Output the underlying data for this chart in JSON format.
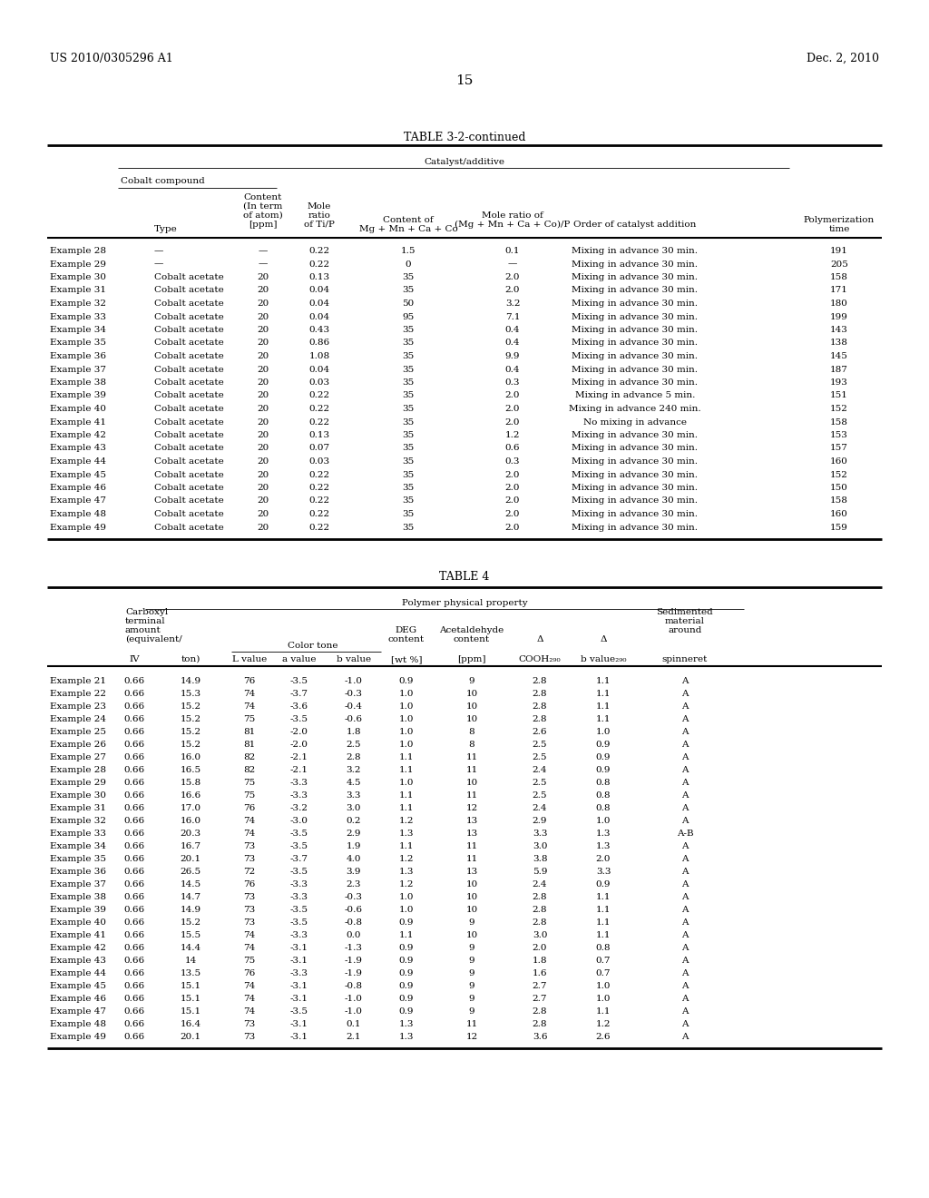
{
  "header_left": "US 2010/0305296 A1",
  "header_right": "Dec. 2, 2010",
  "page_num": "15",
  "table1_title": "TABLE 3-2-continued",
  "table1_span_header": "Catalyst/additive",
  "table1_cobalt_header": "Cobalt compound",
  "table1_rows": [
    [
      "Example 28",
      "—",
      "—",
      "0.22",
      "1.5",
      "0.1",
      "Mixing in advance 30 min.",
      "191"
    ],
    [
      "Example 29",
      "—",
      "—",
      "0.22",
      "0",
      "—",
      "Mixing in advance 30 min.",
      "205"
    ],
    [
      "Example 30",
      "Cobalt acetate",
      "20",
      "0.13",
      "35",
      "2.0",
      "Mixing in advance 30 min.",
      "158"
    ],
    [
      "Example 31",
      "Cobalt acetate",
      "20",
      "0.04",
      "35",
      "2.0",
      "Mixing in advance 30 min.",
      "171"
    ],
    [
      "Example 32",
      "Cobalt acetate",
      "20",
      "0.04",
      "50",
      "3.2",
      "Mixing in advance 30 min.",
      "180"
    ],
    [
      "Example 33",
      "Cobalt acetate",
      "20",
      "0.04",
      "95",
      "7.1",
      "Mixing in advance 30 min.",
      "199"
    ],
    [
      "Example 34",
      "Cobalt acetate",
      "20",
      "0.43",
      "35",
      "0.4",
      "Mixing in advance 30 min.",
      "143"
    ],
    [
      "Example 35",
      "Cobalt acetate",
      "20",
      "0.86",
      "35",
      "0.4",
      "Mixing in advance 30 min.",
      "138"
    ],
    [
      "Example 36",
      "Cobalt acetate",
      "20",
      "1.08",
      "35",
      "9.9",
      "Mixing in advance 30 min.",
      "145"
    ],
    [
      "Example 37",
      "Cobalt acetate",
      "20",
      "0.04",
      "35",
      "0.4",
      "Mixing in advance 30 min.",
      "187"
    ],
    [
      "Example 38",
      "Cobalt acetate",
      "20",
      "0.03",
      "35",
      "0.3",
      "Mixing in advance 30 min.",
      "193"
    ],
    [
      "Example 39",
      "Cobalt acetate",
      "20",
      "0.22",
      "35",
      "2.0",
      "Mixing in advance 5 min.",
      "151"
    ],
    [
      "Example 40",
      "Cobalt acetate",
      "20",
      "0.22",
      "35",
      "2.0",
      "Mixing in advance 240 min.",
      "152"
    ],
    [
      "Example 41",
      "Cobalt acetate",
      "20",
      "0.22",
      "35",
      "2.0",
      "No mixing in advance",
      "158"
    ],
    [
      "Example 42",
      "Cobalt acetate",
      "20",
      "0.13",
      "35",
      "1.2",
      "Mixing in advance 30 min.",
      "153"
    ],
    [
      "Example 43",
      "Cobalt acetate",
      "20",
      "0.07",
      "35",
      "0.6",
      "Mixing in advance 30 min.",
      "157"
    ],
    [
      "Example 44",
      "Cobalt acetate",
      "20",
      "0.03",
      "35",
      "0.3",
      "Mixing in advance 30 min.",
      "160"
    ],
    [
      "Example 45",
      "Cobalt acetate",
      "20",
      "0.22",
      "35",
      "2.0",
      "Mixing in advance 30 min.",
      "152"
    ],
    [
      "Example 46",
      "Cobalt acetate",
      "20",
      "0.22",
      "35",
      "2.0",
      "Mixing in advance 30 min.",
      "150"
    ],
    [
      "Example 47",
      "Cobalt acetate",
      "20",
      "0.22",
      "35",
      "2.0",
      "Mixing in advance 30 min.",
      "158"
    ],
    [
      "Example 48",
      "Cobalt acetate",
      "20",
      "0.22",
      "35",
      "2.0",
      "Mixing in advance 30 min.",
      "160"
    ],
    [
      "Example 49",
      "Cobalt acetate",
      "20",
      "0.22",
      "35",
      "2.0",
      "Mixing in advance 30 min.",
      "159"
    ]
  ],
  "table2_title": "TABLE 4",
  "table2_span_header": "Polymer physical property",
  "table2_rows": [
    [
      "Example 21",
      "0.66",
      "14.9",
      "76",
      "-3.5",
      "-1.0",
      "0.9",
      "9",
      "2.8",
      "1.1",
      "A"
    ],
    [
      "Example 22",
      "0.66",
      "15.3",
      "74",
      "-3.7",
      "-0.3",
      "1.0",
      "10",
      "2.8",
      "1.1",
      "A"
    ],
    [
      "Example 23",
      "0.66",
      "15.2",
      "74",
      "-3.6",
      "-0.4",
      "1.0",
      "10",
      "2.8",
      "1.1",
      "A"
    ],
    [
      "Example 24",
      "0.66",
      "15.2",
      "75",
      "-3.5",
      "-0.6",
      "1.0",
      "10",
      "2.8",
      "1.1",
      "A"
    ],
    [
      "Example 25",
      "0.66",
      "15.2",
      "81",
      "-2.0",
      "1.8",
      "1.0",
      "8",
      "2.6",
      "1.0",
      "A"
    ],
    [
      "Example 26",
      "0.66",
      "15.2",
      "81",
      "-2.0",
      "2.5",
      "1.0",
      "8",
      "2.5",
      "0.9",
      "A"
    ],
    [
      "Example 27",
      "0.66",
      "16.0",
      "82",
      "-2.1",
      "2.8",
      "1.1",
      "11",
      "2.5",
      "0.9",
      "A"
    ],
    [
      "Example 28",
      "0.66",
      "16.5",
      "82",
      "-2.1",
      "3.2",
      "1.1",
      "11",
      "2.4",
      "0.9",
      "A"
    ],
    [
      "Example 29",
      "0.66",
      "15.8",
      "75",
      "-3.3",
      "4.5",
      "1.0",
      "10",
      "2.5",
      "0.8",
      "A"
    ],
    [
      "Example 30",
      "0.66",
      "16.6",
      "75",
      "-3.3",
      "3.3",
      "1.1",
      "11",
      "2.5",
      "0.8",
      "A"
    ],
    [
      "Example 31",
      "0.66",
      "17.0",
      "76",
      "-3.2",
      "3.0",
      "1.1",
      "12",
      "2.4",
      "0.8",
      "A"
    ],
    [
      "Example 32",
      "0.66",
      "16.0",
      "74",
      "-3.0",
      "0.2",
      "1.2",
      "13",
      "2.9",
      "1.0",
      "A"
    ],
    [
      "Example 33",
      "0.66",
      "20.3",
      "74",
      "-3.5",
      "2.9",
      "1.3",
      "13",
      "3.3",
      "1.3",
      "A-B"
    ],
    [
      "Example 34",
      "0.66",
      "16.7",
      "73",
      "-3.5",
      "1.9",
      "1.1",
      "11",
      "3.0",
      "1.3",
      "A"
    ],
    [
      "Example 35",
      "0.66",
      "20.1",
      "73",
      "-3.7",
      "4.0",
      "1.2",
      "11",
      "3.8",
      "2.0",
      "A"
    ],
    [
      "Example 36",
      "0.66",
      "26.5",
      "72",
      "-3.5",
      "3.9",
      "1.3",
      "13",
      "5.9",
      "3.3",
      "A"
    ],
    [
      "Example 37",
      "0.66",
      "14.5",
      "76",
      "-3.3",
      "2.3",
      "1.2",
      "10",
      "2.4",
      "0.9",
      "A"
    ],
    [
      "Example 38",
      "0.66",
      "14.7",
      "73",
      "-3.3",
      "-0.3",
      "1.0",
      "10",
      "2.8",
      "1.1",
      "A"
    ],
    [
      "Example 39",
      "0.66",
      "14.9",
      "73",
      "-3.5",
      "-0.6",
      "1.0",
      "10",
      "2.8",
      "1.1",
      "A"
    ],
    [
      "Example 40",
      "0.66",
      "15.2",
      "73",
      "-3.5",
      "-0.8",
      "0.9",
      "9",
      "2.8",
      "1.1",
      "A"
    ],
    [
      "Example 41",
      "0.66",
      "15.5",
      "74",
      "-3.3",
      "0.0",
      "1.1",
      "10",
      "3.0",
      "1.1",
      "A"
    ],
    [
      "Example 42",
      "0.66",
      "14.4",
      "74",
      "-3.1",
      "-1.3",
      "0.9",
      "9",
      "2.0",
      "0.8",
      "A"
    ],
    [
      "Example 43",
      "0.66",
      "14",
      "75",
      "-3.1",
      "-1.9",
      "0.9",
      "9",
      "1.8",
      "0.7",
      "A"
    ],
    [
      "Example 44",
      "0.66",
      "13.5",
      "76",
      "-3.3",
      "-1.9",
      "0.9",
      "9",
      "1.6",
      "0.7",
      "A"
    ],
    [
      "Example 45",
      "0.66",
      "15.1",
      "74",
      "-3.1",
      "-0.8",
      "0.9",
      "9",
      "2.7",
      "1.0",
      "A"
    ],
    [
      "Example 46",
      "0.66",
      "15.1",
      "74",
      "-3.1",
      "-1.0",
      "0.9",
      "9",
      "2.7",
      "1.0",
      "A"
    ],
    [
      "Example 47",
      "0.66",
      "15.1",
      "74",
      "-3.5",
      "-1.0",
      "0.9",
      "9",
      "2.8",
      "1.1",
      "A"
    ],
    [
      "Example 48",
      "0.66",
      "16.4",
      "73",
      "-3.1",
      "0.1",
      "1.3",
      "11",
      "2.8",
      "1.2",
      "A"
    ],
    [
      "Example 49",
      "0.66",
      "20.1",
      "73",
      "-3.1",
      "2.1",
      "1.3",
      "12",
      "3.6",
      "2.6",
      "A"
    ]
  ],
  "bg_color": "#ffffff",
  "text_color": "#000000"
}
